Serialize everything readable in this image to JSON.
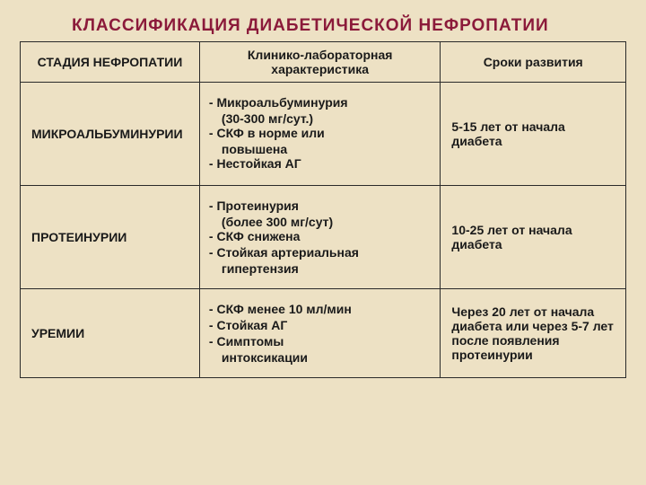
{
  "title": "КЛАССИФИКАЦИЯ ДИАБЕТИЧЕСКОЙ НЕФРОПАТИИ",
  "headers": {
    "stage": "СТАДИЯ НЕФРОПАТИИ",
    "characteristics": "Клинико-лабораторная характеристика",
    "timeline": "Сроки развития"
  },
  "rows": [
    {
      "stage": "МИКРОАЛЬБУМИНУРИИ",
      "char1": "- Микроальбуминурия",
      "char1sub": "(30-300 мг/сут.)",
      "char2": "- СКФ в норме или",
      "char2sub": "повышена",
      "char3": "- Нестойкая АГ",
      "timeline": "5-15 лет от начала диабета"
    },
    {
      "stage": "ПРОТЕИНУРИИ",
      "char1": "- Протеинурия",
      "char1sub": "(более 300 мг/сут)",
      "char2": "- СКФ снижена",
      "char3": "- Стойкая артериальная",
      "char3sub": "гипертензия",
      "timeline": "10-25 лет от начала диабета"
    },
    {
      "stage": "УРЕМИИ",
      "char1": "- СКФ менее 10 мл/мин",
      "char2": "- Стойкая АГ",
      "char3": "- Симптомы",
      "char3sub": "интоксикации",
      "timeline": "Через 20 лет от начала диабета или через 5-7 лет после появления протеинурии"
    }
  ],
  "styling": {
    "background_color": "#ede1c4",
    "title_color": "#8b1a3a",
    "border_color": "#2a2a2a",
    "text_color": "#1a1a1a",
    "title_fontsize": 19,
    "cell_fontsize": 14
  }
}
